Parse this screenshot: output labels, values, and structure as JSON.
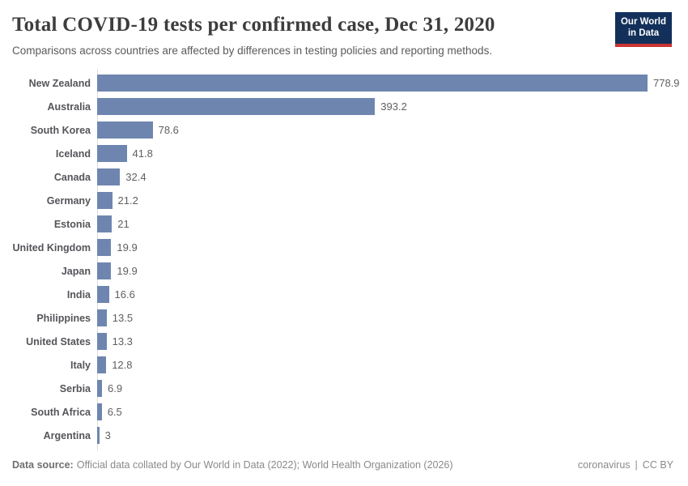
{
  "header": {
    "title": "Total COVID-19 tests per confirmed case, Dec 31, 2020",
    "subtitle": "Comparisons across countries are affected by differences in testing policies and reporting methods.",
    "logo": {
      "line1": "Our World",
      "line2": "in Data"
    }
  },
  "chart_data": {
    "type": "bar",
    "orientation": "horizontal",
    "title": "Total COVID-19 tests per confirmed case, Dec 31, 2020",
    "categories": [
      "New Zealand",
      "Australia",
      "South Korea",
      "Iceland",
      "Canada",
      "Germany",
      "Estonia",
      "United Kingdom",
      "Japan",
      "India",
      "Philippines",
      "United States",
      "Italy",
      "Serbia",
      "South Africa",
      "Argentina"
    ],
    "values": [
      778.9,
      393.2,
      78.6,
      41.8,
      32.4,
      21.2,
      21,
      19.9,
      19.9,
      16.6,
      13.5,
      13.3,
      12.8,
      6.9,
      6.5,
      3
    ],
    "value_labels": [
      "778.9",
      "393.2",
      "78.6",
      "41.8",
      "32.4",
      "21.2",
      "21",
      "19.9",
      "19.9",
      "16.6",
      "13.5",
      "13.3",
      "12.8",
      "6.9",
      "6.5",
      "3"
    ],
    "xlim": [
      0,
      778.9
    ],
    "bar_color": "#6e86af",
    "grid": false,
    "legend": false
  },
  "footer": {
    "source_label": "Data source:",
    "source_text": "Official data collated by Our World in Data (2022); World Health Organization (2026)",
    "link_text": "coronavirus",
    "separator": "|",
    "license_text": "CC BY"
  },
  "colors": {
    "bar": "#6e86af",
    "logo_bg": "#12305a",
    "logo_stripe": "#ca3433",
    "title": "#3d3d3d",
    "subtitle": "#5a5a5a",
    "label": "#54555a",
    "value": "#5f5f5f",
    "axis": "#dcdcdc",
    "footer": "#8a8a8a"
  }
}
